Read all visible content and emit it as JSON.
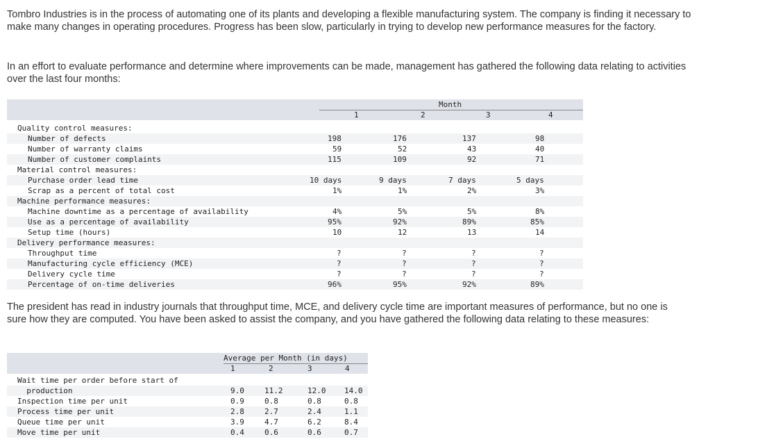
{
  "intro": {
    "p1": "Tombro Industries is in the process of automating one of its plants and developing a flexible manufacturing system. The company is finding it necessary to make many changes in operating procedures. Progress has been slow, particularly in trying to develop new performance measures for the factory.",
    "p2": "In an effort to evaluate performance and determine where improvements can be made, management has gathered the following data relating to activities over the last four months:",
    "p3": "The president has read in industry journals that throughput time, MCE, and delivery cycle time are important measures of performance, but no one is sure how they are computed. You have been asked to assist the company, and you have gathered the following data relating to these measures:"
  },
  "table1": {
    "month_header": "Month",
    "columns": [
      "1",
      "2",
      "3",
      "4"
    ],
    "rows": [
      {
        "label": "Quality control measures:",
        "indent": 0,
        "values": [
          "",
          "",
          "",
          ""
        ]
      },
      {
        "label": "Number of defects",
        "indent": 1,
        "values": [
          "198",
          "176",
          "137",
          "98"
        ]
      },
      {
        "label": "Number of warranty claims",
        "indent": 1,
        "values": [
          "59",
          "52",
          "43",
          "40"
        ]
      },
      {
        "label": "Number of customer complaints",
        "indent": 1,
        "values": [
          "115",
          "109",
          "92",
          "71"
        ]
      },
      {
        "label": "Material control measures:",
        "indent": 0,
        "values": [
          "",
          "",
          "",
          ""
        ]
      },
      {
        "label": "Purchase order lead time",
        "indent": 1,
        "values": [
          "10 days",
          "9 days",
          "7 days",
          "5 days"
        ]
      },
      {
        "label": "Scrap as a percent of total cost",
        "indent": 1,
        "values": [
          "1%",
          "1%",
          "2%",
          "3%"
        ]
      },
      {
        "label": "Machine performance measures:",
        "indent": 0,
        "values": [
          "",
          "",
          "",
          ""
        ]
      },
      {
        "label": "Machine downtime as a percentage of availability",
        "indent": 1,
        "values": [
          "4%",
          "5%",
          "5%",
          "8%"
        ]
      },
      {
        "label": "Use as a percentage of availability",
        "indent": 1,
        "values": [
          "95%",
          "92%",
          "89%",
          "85%"
        ]
      },
      {
        "label": "Setup time (hours)",
        "indent": 1,
        "values": [
          "10",
          "12",
          "13",
          "14"
        ]
      },
      {
        "label": "Delivery performance measures:",
        "indent": 0,
        "values": [
          "",
          "",
          "",
          ""
        ]
      },
      {
        "label": "Throughput time",
        "indent": 1,
        "values": [
          "?",
          "?",
          "?",
          "?"
        ]
      },
      {
        "label": "Manufacturing cycle efficiency (MCE)",
        "indent": 1,
        "values": [
          "?",
          "?",
          "?",
          "?"
        ]
      },
      {
        "label": "Delivery cycle time",
        "indent": 1,
        "values": [
          "?",
          "?",
          "?",
          "?"
        ]
      },
      {
        "label": "Percentage of on-time deliveries",
        "indent": 1,
        "values": [
          "96%",
          "95%",
          "92%",
          "89%"
        ]
      }
    ]
  },
  "table2": {
    "header": "Average per Month (in days)",
    "columns": [
      "1",
      "2",
      "3",
      "4"
    ],
    "rows": [
      {
        "label": "Wait time per order before start of",
        "values": [
          "",
          "",
          "",
          ""
        ]
      },
      {
        "label": "  production",
        "values": [
          "9.0",
          "11.2",
          "12.0",
          "14.0"
        ]
      },
      {
        "label": "Inspection time per unit",
        "values": [
          "0.9",
          "0.8",
          "0.8",
          "0.8"
        ]
      },
      {
        "label": "Process time per unit",
        "values": [
          "2.8",
          "2.7",
          "2.4",
          "1.1"
        ]
      },
      {
        "label": "Queue time per unit",
        "values": [
          "3.9",
          "4.7",
          "6.2",
          "8.4"
        ]
      },
      {
        "label": "Move time per unit",
        "values": [
          "0.4",
          "0.6",
          "0.6",
          "0.7"
        ]
      }
    ]
  }
}
